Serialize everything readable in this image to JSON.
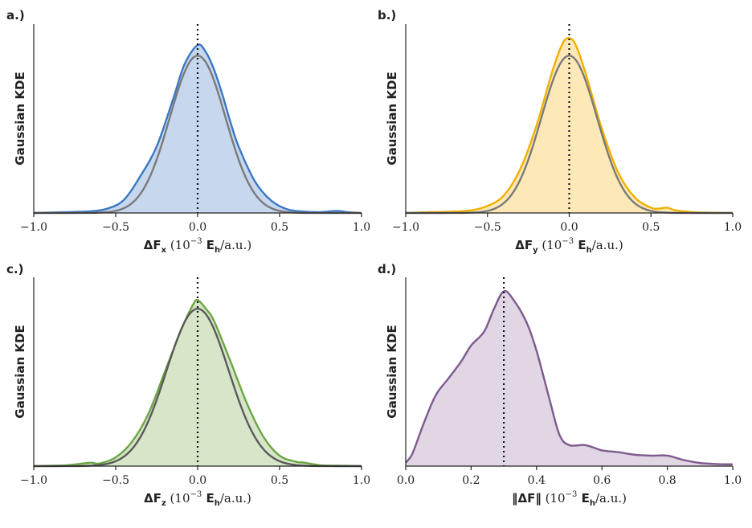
{
  "chart_data": [
    {
      "type": "line",
      "panel_label": "a.)",
      "ylabel": "Gaussian KDE",
      "xlabel": {
        "delta": "ΔF",
        "sub": "x",
        "units_pre": " (10",
        "sup": "−3",
        "units_mid": " E",
        "units_sub": "h",
        "units_post": "/a.u.)"
      },
      "xlim": [
        -1.0,
        1.0
      ],
      "xticks": [
        -1.0,
        -0.5,
        0.0,
        0.5,
        1.0
      ],
      "tick_labels": [
        "−1.0",
        "−0.5",
        "0.0",
        "0.5",
        "1.0"
      ],
      "vline_x": 0.0,
      "color": "#3a78c4",
      "fill": "#c7d7ee",
      "gaussian_color": "#7a7a7a",
      "reference": {
        "name": "Gaussian fit",
        "mean": 0.0,
        "sd": 0.17,
        "peak": 0.9
      },
      "series": [
        {
          "name": "KDE",
          "x": [
            -1.0,
            -0.8,
            -0.65,
            -0.55,
            -0.45,
            -0.35,
            -0.25,
            -0.15,
            -0.08,
            0.0,
            0.05,
            0.1,
            0.15,
            0.2,
            0.25,
            0.35,
            0.45,
            0.55,
            0.65,
            0.75,
            0.85,
            0.92,
            1.0
          ],
          "y": [
            0.0,
            0.005,
            0.01,
            0.025,
            0.075,
            0.21,
            0.38,
            0.65,
            0.85,
            0.96,
            0.92,
            0.82,
            0.68,
            0.52,
            0.38,
            0.18,
            0.07,
            0.02,
            0.008,
            0.005,
            0.012,
            0.004,
            0.0
          ]
        }
      ]
    },
    {
      "type": "line",
      "panel_label": "b.)",
      "ylabel": "Gaussian KDE",
      "xlabel": {
        "delta": "ΔF",
        "sub": "y",
        "units_pre": " (10",
        "sup": "−3",
        "units_mid": " E",
        "units_sub": "h",
        "units_post": "/a.u.)"
      },
      "xlim": [
        -1.0,
        1.0
      ],
      "xticks": [
        -1.0,
        -0.5,
        0.0,
        0.5,
        1.0
      ],
      "tick_labels": [
        "−1.0",
        "−0.5",
        "0.0",
        "0.5",
        "1.0"
      ],
      "vline_x": 0.0,
      "color": "#f0b000",
      "fill": "#fde9b8",
      "gaussian_color": "#7a7a7a",
      "reference": {
        "name": "Gaussian fit",
        "mean": 0.0,
        "sd": 0.17,
        "peak": 0.9
      },
      "series": [
        {
          "name": "KDE",
          "x": [
            -1.0,
            -0.85,
            -0.7,
            -0.6,
            -0.5,
            -0.4,
            -0.3,
            -0.2,
            -0.1,
            -0.04,
            0.0,
            0.04,
            0.1,
            0.2,
            0.3,
            0.4,
            0.5,
            0.55,
            0.6,
            0.65,
            0.75,
            0.85,
            1.0
          ],
          "y": [
            0.0,
            0.005,
            0.008,
            0.015,
            0.04,
            0.1,
            0.25,
            0.5,
            0.82,
            0.97,
            1.0,
            0.96,
            0.8,
            0.48,
            0.23,
            0.09,
            0.03,
            0.025,
            0.03,
            0.015,
            0.005,
            0.002,
            0.0
          ]
        }
      ]
    },
    {
      "type": "line",
      "panel_label": "c.)",
      "ylabel": "Gaussian KDE",
      "xlabel": {
        "delta": "ΔF",
        "sub": "z",
        "units_pre": " (10",
        "sup": "−3",
        "units_mid": " E",
        "units_sub": "h",
        "units_post": "/a.u.)"
      },
      "xlim": [
        -1.0,
        1.0
      ],
      "xticks": [
        -1.0,
        -0.5,
        0.0,
        0.5,
        1.0
      ],
      "tick_labels": [
        "−1.0",
        "−0.5",
        "0.0",
        "0.5",
        "1.0"
      ],
      "vline_x": 0.0,
      "color": "#6aa543",
      "fill": "#d7e6c8",
      "gaussian_color": "#5a5a5a",
      "reference": {
        "name": "Gaussian fit",
        "mean": 0.0,
        "sd": 0.19,
        "peak": 0.9
      },
      "series": [
        {
          "name": "KDE",
          "x": [
            -1.0,
            -0.8,
            -0.7,
            -0.65,
            -0.6,
            -0.5,
            -0.4,
            -0.3,
            -0.2,
            -0.1,
            -0.03,
            0.0,
            0.05,
            0.1,
            0.2,
            0.3,
            0.4,
            0.5,
            0.6,
            0.65,
            0.75,
            0.9,
            1.0
          ],
          "y": [
            0.0,
            0.005,
            0.015,
            0.02,
            0.015,
            0.05,
            0.14,
            0.3,
            0.54,
            0.78,
            0.92,
            0.95,
            0.9,
            0.83,
            0.6,
            0.36,
            0.17,
            0.06,
            0.025,
            0.02,
            0.005,
            0.002,
            0.0
          ]
        }
      ]
    },
    {
      "type": "line",
      "panel_label": "d.)",
      "ylabel": "Gaussian KDE",
      "xlabel": {
        "norm": "‖ΔF‖",
        "units_pre": " (10",
        "sup": "−3",
        "units_mid": " E",
        "units_sub": "h",
        "units_post": "/a.u.)"
      },
      "xlim": [
        0.0,
        1.0
      ],
      "xticks": [
        0.0,
        0.2,
        0.4,
        0.6,
        0.8,
        1.0
      ],
      "tick_labels": [
        "0.0",
        "0.2",
        "0.4",
        "0.6",
        "0.8",
        "1.0"
      ],
      "vline_x": 0.3,
      "color": "#7e5a8e",
      "fill": "#e0d6e4",
      "series": [
        {
          "name": "KDE",
          "x": [
            0.0,
            0.02,
            0.05,
            0.08,
            0.1,
            0.13,
            0.17,
            0.2,
            0.24,
            0.27,
            0.3,
            0.33,
            0.37,
            0.4,
            0.44,
            0.47,
            0.5,
            0.55,
            0.6,
            0.65,
            0.7,
            0.75,
            0.8,
            0.85,
            0.9,
            0.95,
            1.0
          ],
          "y": [
            0.02,
            0.07,
            0.22,
            0.36,
            0.43,
            0.5,
            0.6,
            0.69,
            0.77,
            0.9,
            1.0,
            0.95,
            0.82,
            0.66,
            0.38,
            0.18,
            0.12,
            0.12,
            0.09,
            0.08,
            0.065,
            0.06,
            0.06,
            0.035,
            0.018,
            0.012,
            0.01
          ]
        }
      ]
    }
  ]
}
